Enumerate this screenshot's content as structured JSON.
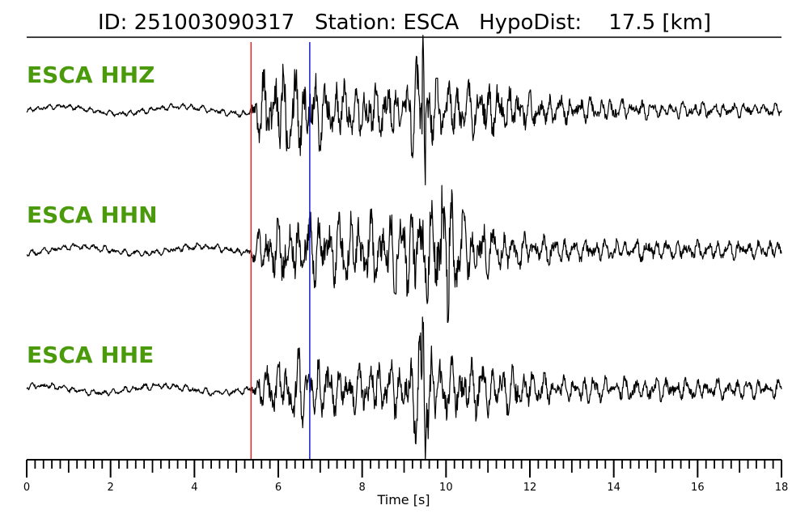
{
  "chart_data": {
    "type": "line",
    "title": "ID: 251003090317   Station: ESCA   HypoDist:    17.5 [km]",
    "xlabel": "Time [s]",
    "xlim": [
      0,
      18
    ],
    "x_ticks": [
      0,
      2,
      4,
      6,
      8,
      10,
      12,
      14,
      16,
      18
    ],
    "x_minor_step": 0.2,
    "x_medium_step": 1,
    "grid": false,
    "picks": [
      {
        "phase": "P",
        "time": 5.35,
        "color": "#ee2222"
      },
      {
        "phase": "S",
        "time": 6.75,
        "color": "#1a1acc"
      }
    ],
    "series": [
      {
        "name": "ESCA HHZ",
        "color": "#000000",
        "label_color": "#4a9a0c",
        "envelope_points": [
          [
            0.0,
            0.04
          ],
          [
            5.3,
            0.05
          ],
          [
            5.6,
            0.55
          ],
          [
            6.2,
            0.72
          ],
          [
            6.8,
            0.62
          ],
          [
            7.5,
            0.45
          ],
          [
            9.0,
            0.4
          ],
          [
            9.45,
            1.0
          ],
          [
            9.7,
            0.45
          ],
          [
            11.0,
            0.42
          ],
          [
            12.5,
            0.22
          ],
          [
            15.0,
            0.13
          ],
          [
            18.0,
            0.1
          ]
        ],
        "peaks": [
          {
            "t": 9.45,
            "value": 1.0
          },
          {
            "t": 9.5,
            "value": -0.9
          }
        ]
      },
      {
        "name": "ESCA HHN",
        "color": "#000000",
        "label_color": "#4a9a0c",
        "envelope_points": [
          [
            0.0,
            0.05
          ],
          [
            5.3,
            0.06
          ],
          [
            5.6,
            0.4
          ],
          [
            6.5,
            0.55
          ],
          [
            7.5,
            0.55
          ],
          [
            9.0,
            0.65
          ],
          [
            9.5,
            0.8
          ],
          [
            10.0,
            1.0
          ],
          [
            10.5,
            0.55
          ],
          [
            11.5,
            0.3
          ],
          [
            13.0,
            0.18
          ],
          [
            18.0,
            0.14
          ]
        ],
        "peaks": [
          {
            "t": 9.9,
            "value": 0.8
          },
          {
            "t": 10.05,
            "value": -1.0
          }
        ]
      },
      {
        "name": "ESCA HHE",
        "color": "#000000",
        "label_color": "#4a9a0c",
        "envelope_points": [
          [
            0.0,
            0.05
          ],
          [
            5.3,
            0.06
          ],
          [
            5.6,
            0.3
          ],
          [
            6.5,
            0.6
          ],
          [
            7.5,
            0.35
          ],
          [
            9.0,
            0.45
          ],
          [
            9.45,
            1.0
          ],
          [
            9.8,
            0.5
          ],
          [
            11.0,
            0.45
          ],
          [
            12.5,
            0.22
          ],
          [
            18.0,
            0.14
          ]
        ],
        "peaks": [
          {
            "t": 9.45,
            "value": 1.0
          },
          {
            "t": 9.5,
            "value": -0.9
          }
        ]
      }
    ]
  }
}
